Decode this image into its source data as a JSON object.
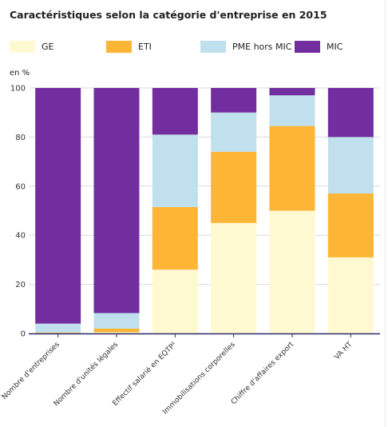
{
  "title": "Caractéristiques selon la catégorie d'entreprise en 2015",
  "unit_label": "en %",
  "legend": [
    {
      "label": "GE",
      "color": "#fff9d1"
    },
    {
      "label": "ETI",
      "color": "#fcb534"
    },
    {
      "label": "PME hors MIC",
      "color": "#bfe0ec"
    },
    {
      "label": "MIC",
      "color": "#722e9e"
    }
  ],
  "chart_data": {
    "type": "bar",
    "stacked": true,
    "title": "Caractéristiques selon la catégorie d'entreprise en 2015",
    "xlabel": "",
    "ylabel": "en %",
    "ylim": [
      0,
      100
    ],
    "yticks": [
      0,
      20,
      40,
      60,
      80,
      100
    ],
    "grid": true,
    "legend_position": "top",
    "categories": [
      "Nombre d'entreprises",
      "Nombre d'unités légales",
      "Effectif salarié en EQTP¹",
      "Immobilisations corporelles",
      "Chiffre d'affaires export",
      "VA HT"
    ],
    "series": [
      {
        "name": "GE",
        "color": "#fff9d1",
        "values": [
          0.1,
          0.5,
          26,
          45,
          50,
          31
        ]
      },
      {
        "name": "ETI",
        "color": "#fcb534",
        "values": [
          0.3,
          1.5,
          25.5,
          29,
          34.5,
          26
        ]
      },
      {
        "name": "PME hors MIC",
        "color": "#bfe0ec",
        "values": [
          3.6,
          6.3,
          29.5,
          16,
          12.5,
          23
        ]
      },
      {
        "name": "MIC",
        "color": "#722e9e",
        "values": [
          96,
          91.7,
          19,
          10,
          3,
          20
        ]
      }
    ]
  }
}
